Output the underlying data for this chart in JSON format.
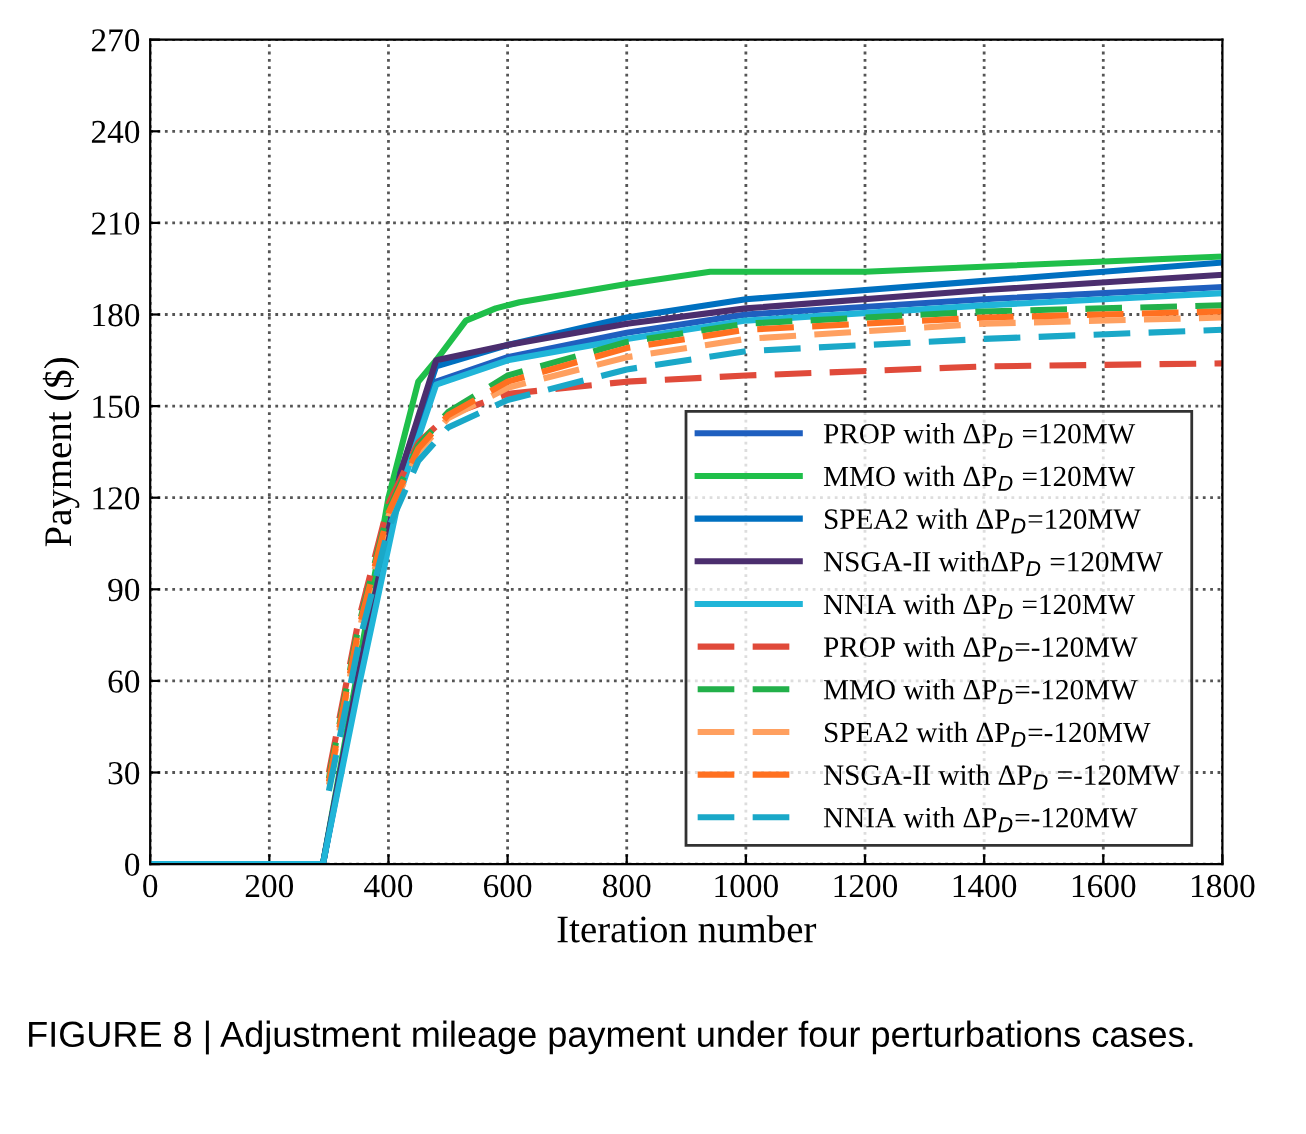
{
  "chart_data": {
    "type": "line",
    "xlabel": "Iteration number",
    "ylabel": "Payment ($)",
    "xlim": [
      0,
      1800
    ],
    "xticks": [
      0,
      200,
      400,
      600,
      800,
      1000,
      1200,
      1400,
      1600,
      1800
    ],
    "ylim": [
      0,
      270
    ],
    "yticks": [
      0,
      30,
      60,
      90,
      120,
      150,
      180,
      210,
      240,
      270
    ],
    "grid": true,
    "legend": "bottom right",
    "marker": "none",
    "annotations": [
      "FIGURE 8 | Adjustment mileage payment under four perturbations cases."
    ],
    "series": [
      {
        "name": "PROP with ΔP$_{D}$ =120MW",
        "color": "#1f5fbf",
        "line_style": "solid",
        "x": [
          0,
          290,
          350,
          420,
          480,
          600,
          800,
          1000,
          1400,
          1800
        ],
        "values": [
          0,
          0,
          60,
          125,
          158,
          166,
          174,
          180,
          185,
          189
        ]
      },
      {
        "name": "MMO with ΔP$_{D}$ =120MW",
        "color": "#1fbf4a",
        "line_style": "solid",
        "x": [
          0,
          290,
          350,
          400,
          450,
          480,
          530,
          580,
          620,
          800,
          940,
          1200,
          1800
        ],
        "values": [
          0,
          0,
          65,
          120,
          158,
          165,
          178,
          182,
          184,
          190,
          194,
          194,
          199
        ]
      },
      {
        "name": "SPEA2 with ΔP$_{D}$=120MW",
        "color": "#0070c0",
        "line_style": "solid",
        "x": [
          0,
          290,
          350,
          420,
          480,
          600,
          800,
          1000,
          1400,
          1800
        ],
        "values": [
          0,
          0,
          62,
          128,
          163,
          170,
          179,
          185,
          191,
          197
        ]
      },
      {
        "name": "NSGA-II withΔP$_{D}$ =120MW",
        "color": "#4b2e6e",
        "line_style": "solid",
        "x": [
          0,
          290,
          350,
          420,
          480,
          600,
          800,
          1000,
          1400,
          1800
        ],
        "values": [
          0,
          0,
          62,
          128,
          165,
          170,
          177,
          182,
          188,
          193
        ]
      },
      {
        "name": "NNIA with ΔP$_{D}$ =120MW",
        "color": "#20b5d8",
        "line_style": "solid",
        "x": [
          0,
          290,
          350,
          420,
          480,
          600,
          800,
          1000,
          1400,
          1800
        ],
        "values": [
          0,
          0,
          58,
          122,
          157,
          165,
          172,
          178,
          183,
          187
        ]
      },
      {
        "name": "PROP with ΔP$_{D}$=-120MW",
        "color": "#e04a3a",
        "line_style": "dashed",
        "x": [
          300,
          350,
          400,
          450,
          500,
          600,
          800,
          1000,
          1400,
          1800
        ],
        "values": [
          30,
          80,
          118,
          138,
          147,
          154,
          158,
          160,
          163,
          164
        ]
      },
      {
        "name": "MMO with ΔP$_{D}$=-120MW",
        "color": "#22b04a",
        "line_style": "dashed",
        "x": [
          300,
          350,
          400,
          450,
          500,
          600,
          800,
          1000,
          1400,
          1800
        ],
        "values": [
          28,
          78,
          116,
          137,
          148,
          160,
          171,
          177,
          181,
          183
        ]
      },
      {
        "name": "SPEA2 with ΔP$_{D}$=-120MW",
        "color": "#ffa060",
        "line_style": "dashed",
        "x": [
          300,
          350,
          400,
          450,
          500,
          600,
          800,
          1000,
          1400,
          1800
        ],
        "values": [
          26,
          76,
          114,
          135,
          146,
          156,
          166,
          172,
          177,
          179
        ]
      },
      {
        "name": "NSGA-II with ΔP$_{D}$ =-120MW",
        "color": "#ff7020",
        "line_style": "dashed",
        "x": [
          300,
          350,
          400,
          450,
          500,
          600,
          800,
          1000,
          1400,
          1800
        ],
        "values": [
          27,
          77,
          115,
          136,
          147,
          158,
          169,
          175,
          179,
          181
        ]
      },
      {
        "name": "NNIA with ΔP$_{D}$=-120MW",
        "color": "#1aa8c8",
        "line_style": "dashed",
        "x": [
          300,
          350,
          400,
          450,
          500,
          600,
          800,
          1000,
          1400,
          1800
        ],
        "values": [
          24,
          72,
          110,
          132,
          143,
          152,
          162,
          168,
          172,
          175
        ]
      }
    ]
  }
}
